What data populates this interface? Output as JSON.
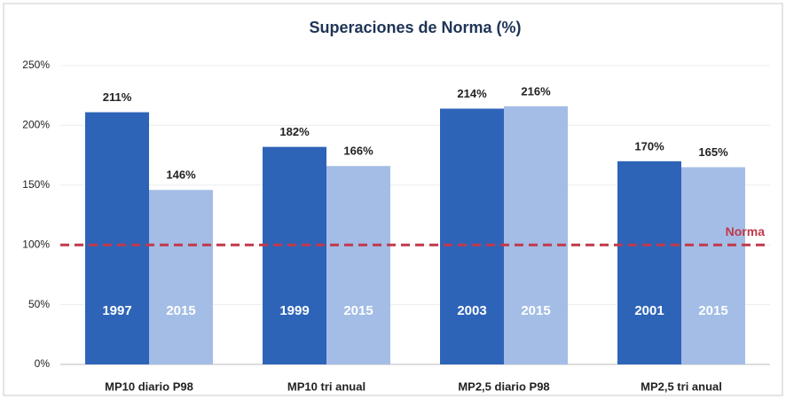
{
  "chart_data": {
    "type": "bar",
    "title": "Superaciones de Norma (%)",
    "categories": [
      "MP10 diario P98",
      "MP10  tri anual",
      "MP2,5 diario P98",
      "MP2,5  tri anual"
    ],
    "series": [
      {
        "color": "#2e64b8",
        "values": [
          211,
          182,
          214,
          170
        ],
        "value_labels": [
          "211%",
          "182%",
          "214%",
          "170%"
        ],
        "labels": [
          "1997",
          "1999",
          "2003",
          "2001"
        ]
      },
      {
        "color": "#a4bde6",
        "values": [
          146,
          166,
          216,
          165
        ],
        "value_labels": [
          "146%",
          "166%",
          "216%",
          "165%"
        ],
        "labels": [
          "2015",
          "2015",
          "2015",
          "2015"
        ]
      }
    ],
    "ylim": [
      0,
      250
    ],
    "yticks": [
      {
        "value": 0,
        "label": "0%"
      },
      {
        "value": 50,
        "label": "50%"
      },
      {
        "value": 100,
        "label": "100%"
      },
      {
        "value": 150,
        "label": "150%"
      },
      {
        "value": 200,
        "label": "200%"
      },
      {
        "value": 250,
        "label": "250%"
      }
    ],
    "grid": true,
    "reference_line": {
      "value": 100,
      "label": "Norma",
      "color": "#c0394b"
    }
  }
}
